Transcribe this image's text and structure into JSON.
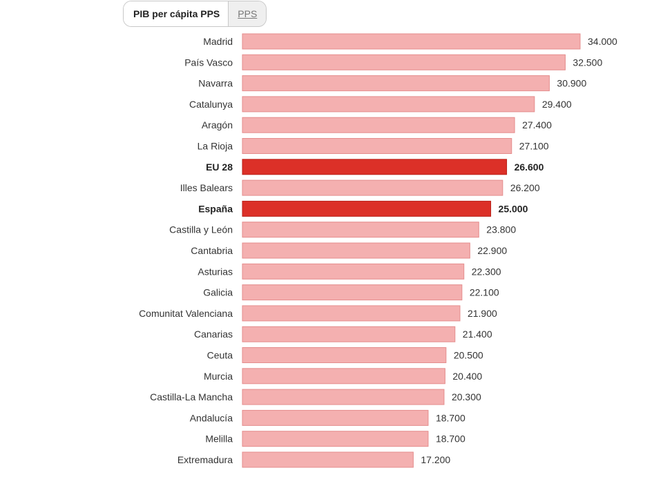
{
  "tabs": {
    "active_label": "PIB per cápita PPS",
    "alt_label": "PPS"
  },
  "colors": {
    "bar": "#f4b0b0",
    "bar_stroke": "#e48c8c",
    "bar_highlight": "#dc3028",
    "bar_highlight_stroke": "#b82018"
  },
  "chart_data": {
    "type": "bar",
    "orientation": "horizontal",
    "title": "",
    "xlabel": "",
    "ylabel": "",
    "xlim": [
      0,
      34000
    ],
    "grid": false,
    "categories": [
      "Madrid",
      "País Vasco",
      "Navarra",
      "Catalunya",
      "Aragón",
      "La Rioja",
      "EU 28",
      "Illes Balears",
      "España",
      "Castilla y León",
      "Cantabria",
      "Asturias",
      "Galicia",
      "Comunitat Valenciana",
      "Canarias",
      "Ceuta",
      "Murcia",
      "Castilla-La Mancha",
      "Andalucía",
      "Melilla",
      "Extremadura"
    ],
    "values": [
      34000,
      32500,
      30900,
      29400,
      27400,
      27100,
      26600,
      26200,
      25000,
      23800,
      22900,
      22300,
      22100,
      21900,
      21400,
      20500,
      20400,
      20300,
      18700,
      18700,
      17200
    ],
    "value_labels": [
      "34.000",
      "32.500",
      "30.900",
      "29.400",
      "27.400",
      "27.100",
      "26.600",
      "26.200",
      "25.000",
      "23.800",
      "22.900",
      "22.300",
      "22.100",
      "21.900",
      "21.400",
      "20.500",
      "20.400",
      "20.300",
      "18.700",
      "18.700",
      "17.200"
    ],
    "highlighted": [
      "EU 28",
      "España"
    ]
  }
}
